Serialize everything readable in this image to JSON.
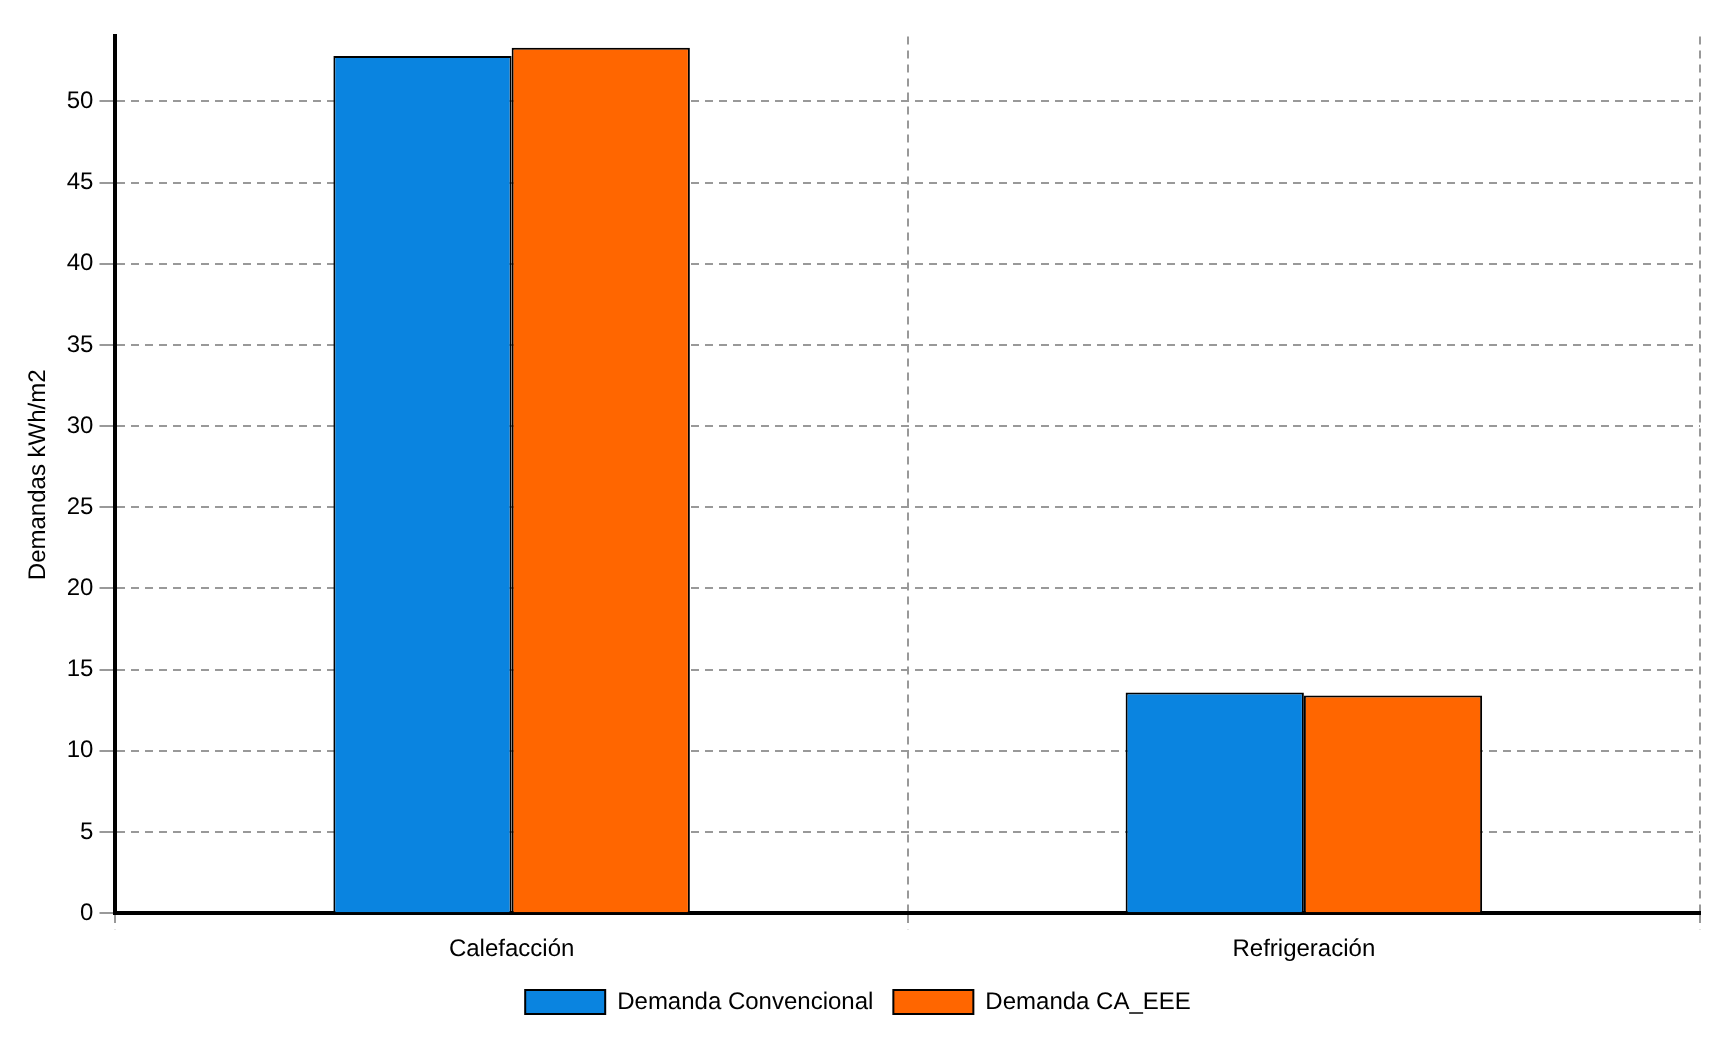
{
  "chart_data": {
    "type": "bar",
    "ylabel": "Demandas kWh/m2",
    "categories": [
      "Calefacción",
      "Refrigeración"
    ],
    "series": [
      {
        "name": "Demanda Convencional",
        "color": "#0a84e0",
        "values": [
          52.8,
          13.6
        ]
      },
      {
        "name": "Demanda CA_EEE",
        "color": "#ff6600",
        "values": [
          53.3,
          13.4
        ]
      }
    ],
    "ylim": [
      0,
      54
    ],
    "yticks": [
      0,
      5,
      10,
      15,
      20,
      25,
      30,
      35,
      40,
      45,
      50
    ],
    "grid": true,
    "legend": "bottom"
  }
}
